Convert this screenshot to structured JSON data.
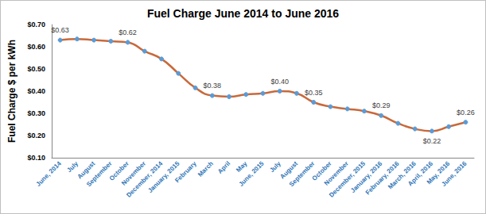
{
  "chart_data": {
    "type": "line",
    "title": "Fuel Charge June 2014 to June 2016",
    "y_label": "Fuel Charge $ per kWh",
    "categories": [
      "June, 2014",
      "July",
      "August",
      "September",
      "October",
      "November",
      "December, 2014",
      "January, 2015",
      "February",
      "March",
      "April",
      "May",
      "June, 2015",
      "July",
      "August",
      "September",
      "October",
      "November",
      "December, 2015",
      "January, 2016",
      "February, 2016",
      "March, 2016",
      "April, 2016",
      "May, 2016",
      "June, 2016"
    ],
    "values": [
      0.63,
      0.635,
      0.63,
      0.625,
      0.62,
      0.58,
      0.545,
      0.48,
      0.415,
      0.38,
      0.375,
      0.385,
      0.39,
      0.4,
      0.39,
      0.35,
      0.33,
      0.32,
      0.31,
      0.29,
      0.255,
      0.23,
      0.22,
      0.24,
      0.26
    ],
    "value_labels": [
      "$0.63",
      null,
      null,
      null,
      "$0.62",
      null,
      null,
      null,
      null,
      "$0.38",
      null,
      null,
      null,
      "$0.40",
      null,
      "$0.35",
      null,
      null,
      null,
      "$0.29",
      null,
      null,
      "$0.22",
      null,
      "$0.26"
    ],
    "data_labels": true,
    "color": "#c8693c",
    "marker": "circle",
    "ylim": [
      0.1,
      0.7
    ],
    "yticks": [
      {
        "value": 0.1,
        "label": "$0.10"
      },
      {
        "value": 0.2,
        "label": "$0.20"
      },
      {
        "value": 0.3,
        "label": "$0.30"
      },
      {
        "value": 0.4,
        "label": "$0.40"
      },
      {
        "value": 0.5,
        "label": "$0.50"
      },
      {
        "value": 0.6,
        "label": "$0.60"
      },
      {
        "value": 0.7,
        "label": "$0.70"
      }
    ],
    "grid": false
  }
}
